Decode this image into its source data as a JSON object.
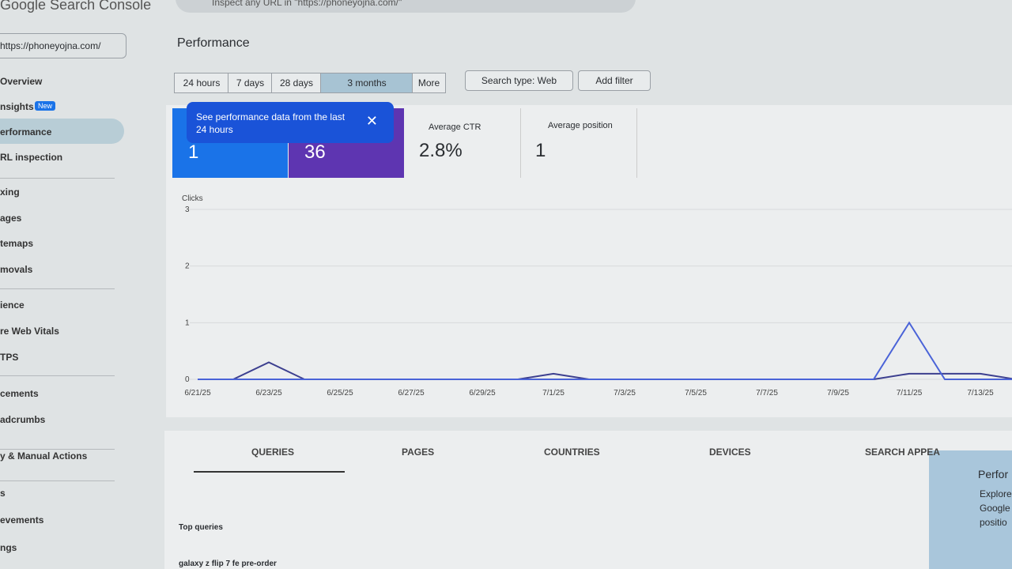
{
  "header": {
    "logo": "Google Search Console",
    "search_placeholder": "Inspect any URL in \"https://phoneyojna.com/\""
  },
  "property": "https://phoneyojna.com/",
  "nav": {
    "items": [
      "Overview",
      "nsights",
      "erformance",
      "RL inspection",
      "xing",
      "ages",
      "temaps",
      "movals",
      "ience",
      "re Web Vitals",
      "TPS",
      "cements",
      "adcrumbs",
      "y & Manual Actions",
      "s",
      "evements",
      "ngs"
    ],
    "badge": "New"
  },
  "page_title": "Performance",
  "date_buttons": [
    "24 hours",
    "7 days",
    "28 days",
    "3 months",
    "More"
  ],
  "filters": [
    "Search type: Web",
    "Add filter"
  ],
  "tooltip": "See performance data from the last 24 hours",
  "cards": [
    {
      "value": "1"
    },
    {
      "value": "36"
    },
    {
      "label": "Average CTR",
      "value": "2.8%"
    },
    {
      "label": "Average position",
      "value": "1"
    }
  ],
  "chart": {
    "type": "line",
    "y_label": "Clicks",
    "ylim": [
      0,
      3
    ],
    "yticks": [
      0,
      1,
      2,
      3
    ],
    "x_labels": [
      "6/21/25",
      null,
      "6/23/25",
      null,
      "6/25/25",
      null,
      "6/27/25",
      null,
      "6/29/25",
      null,
      "7/1/25",
      null,
      "7/3/25",
      null,
      "7/5/25",
      null,
      "7/7/25",
      null,
      "7/9/25",
      null,
      "7/11/25",
      null,
      "7/13/25",
      null
    ],
    "series": [
      {
        "color": "#3c3f8f",
        "values": [
          0,
          0,
          0.3,
          0,
          0,
          0,
          0,
          0,
          0,
          0,
          0.1,
          0,
          0,
          0,
          0,
          0,
          0,
          0,
          0,
          0,
          0.1,
          0.1,
          0.1,
          0
        ]
      },
      {
        "color": "#4a63d8",
        "values": [
          0,
          0,
          0,
          0,
          0,
          0,
          0,
          0,
          0,
          0,
          0,
          0,
          0,
          0,
          0,
          0,
          0,
          0,
          0,
          0,
          1,
          0,
          0,
          0
        ]
      }
    ]
  },
  "tabs": [
    "QUERIES",
    "PAGES",
    "COUNTRIES",
    "DEVICES",
    "SEARCH APPEA"
  ],
  "table": {
    "heading": "Top queries",
    "rows": [
      "galaxy z flip 7 fe pre-order"
    ]
  },
  "side_panel": {
    "title": "Perfor",
    "lines": [
      "Explore",
      "Google",
      "positio"
    ]
  }
}
